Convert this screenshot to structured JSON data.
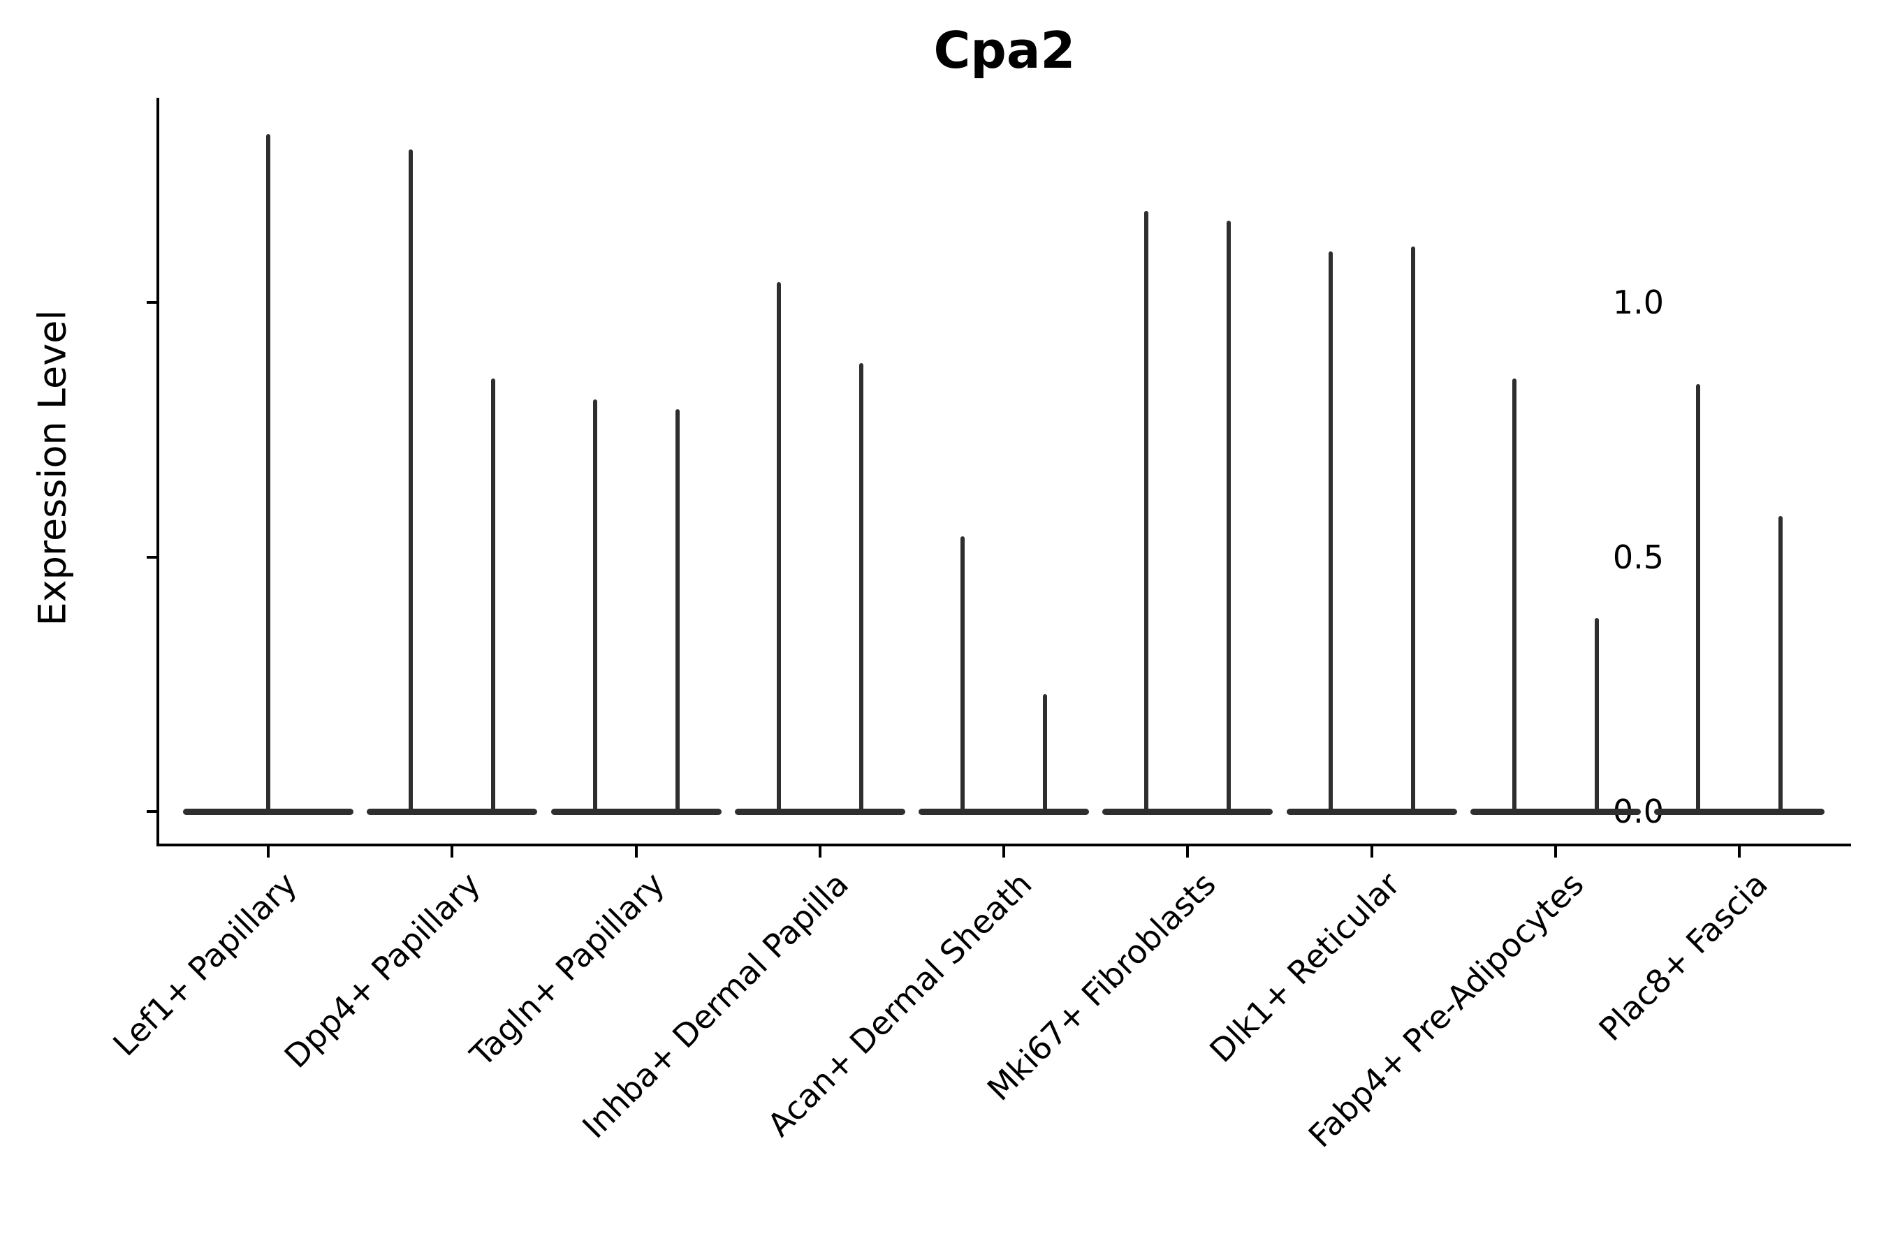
{
  "chart_data": {
    "type": "violin",
    "title": "Cpa2",
    "ylabel": "Expression Level",
    "xlabel": "",
    "grid": false,
    "legend": "none",
    "ylim": [
      -0.07,
      1.4
    ],
    "yticks": [
      {
        "label": "0.0",
        "value": 0.0
      },
      {
        "label": "0.5",
        "value": 0.5
      },
      {
        "label": "1.0",
        "value": 1.0
      }
    ],
    "categories": [
      "Lef1+ Papillary",
      "Dpp4+ Papillary",
      "Tagln+ Papillary",
      "Inhba+ Dermal Papilla",
      "Acan+ Dermal Sheath",
      "Mki67+ Fibroblasts",
      "Dlk1+ Reticular",
      "Fabp4+ Pre-Adipocytes",
      "Plac8+ Fascia"
    ],
    "series": [
      {
        "category": "Lef1+ Papillary",
        "violin_maxima": [
          1.33
        ]
      },
      {
        "category": "Dpp4+ Papillary",
        "violin_maxima": [
          1.3,
          0.85
        ]
      },
      {
        "category": "Tagln+ Papillary",
        "violin_maxima": [
          0.81,
          0.79
        ]
      },
      {
        "category": "Inhba+ Dermal Papilla",
        "violin_maxima": [
          1.04,
          0.88
        ]
      },
      {
        "category": "Acan+ Dermal Sheath",
        "violin_maxima": [
          0.54,
          0.23
        ]
      },
      {
        "category": "Mki67+ Fibroblasts",
        "violin_maxima": [
          1.18,
          1.16
        ]
      },
      {
        "category": "Dlk1+ Reticular",
        "violin_maxima": [
          1.1,
          1.11
        ]
      },
      {
        "category": "Fabp4+ Pre-Adipocytes",
        "violin_maxima": [
          0.85,
          0.38
        ]
      },
      {
        "category": "Plac8+ Fascia",
        "violin_maxima": [
          0.84,
          0.58
        ]
      }
    ],
    "violin_baseline_value": 0.0,
    "colors": {
      "violin": "#2e2e2e",
      "axis": "#000000",
      "text": "#000000",
      "background": "#ffffff"
    }
  }
}
